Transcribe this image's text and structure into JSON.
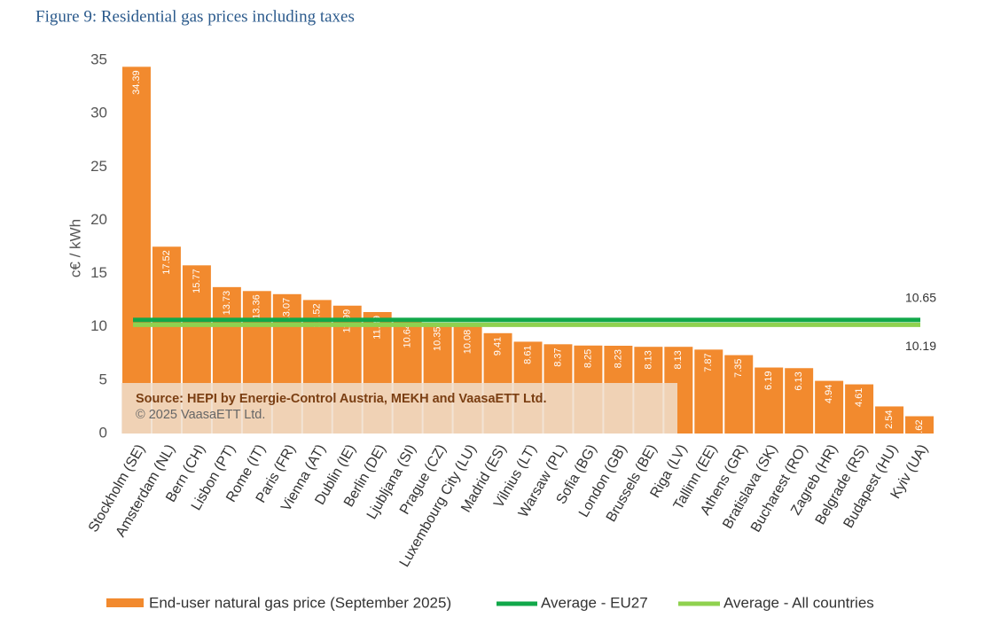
{
  "chart_data": {
    "type": "bar",
    "title": "Figure 9: Residential gas prices including taxes",
    "y_label": "c€ / kWh",
    "categories": [
      "Stockholm (SE)",
      "Amsterdam (NL)",
      "Bern (CH)",
      "Lisbon (PT)",
      "Rome (IT)",
      "Paris (FR)",
      "Vienna (AT)",
      "Dublin (IE)",
      "Berlin (DE)",
      "Ljubljana (SI)",
      "Prague (CZ)",
      "Luxembourg City (LU)",
      "Madrid (ES)",
      "Vilnius (LT)",
      "Warsaw (PL)",
      "Sofia (BG)",
      "London (GB)",
      "Brussels (BE)",
      "Riga (LV)",
      "Tallinn (EE)",
      "Athens (GR)",
      "Bratislava (SK)",
      "Bucharest (RO)",
      "Zagreb (HR)",
      "Belgrade (RS)",
      "Budapest (HU)",
      "Kyiv (UA)"
    ],
    "series": [
      {
        "name": "End-user natural gas price (September 2025)",
        "color": "#f28a2e",
        "values": [
          34.39,
          17.52,
          15.77,
          13.73,
          13.36,
          13.07,
          12.52,
          11.99,
          11.39,
          10.64,
          10.35,
          10.08,
          9.41,
          8.61,
          8.37,
          8.25,
          8.23,
          8.13,
          8.13,
          7.87,
          7.35,
          6.19,
          6.13,
          4.94,
          4.61,
          2.54,
          1.62
        ]
      }
    ],
    "averages": [
      {
        "name": "Average - EU27",
        "color": "#11a84a",
        "value": 10.65
      },
      {
        "name": "Average - All countries",
        "color": "#8fd14f",
        "value": 10.19
      }
    ],
    "ylim": [
      0,
      35
    ],
    "yticks": [
      0,
      5,
      10,
      15,
      20,
      25,
      30,
      35
    ],
    "annotations": [
      "Source: HEPI by Energie-Control Austria, MEKH and VaasaETT Ltd.",
      "© 2025 VaasaETT Ltd."
    ]
  }
}
